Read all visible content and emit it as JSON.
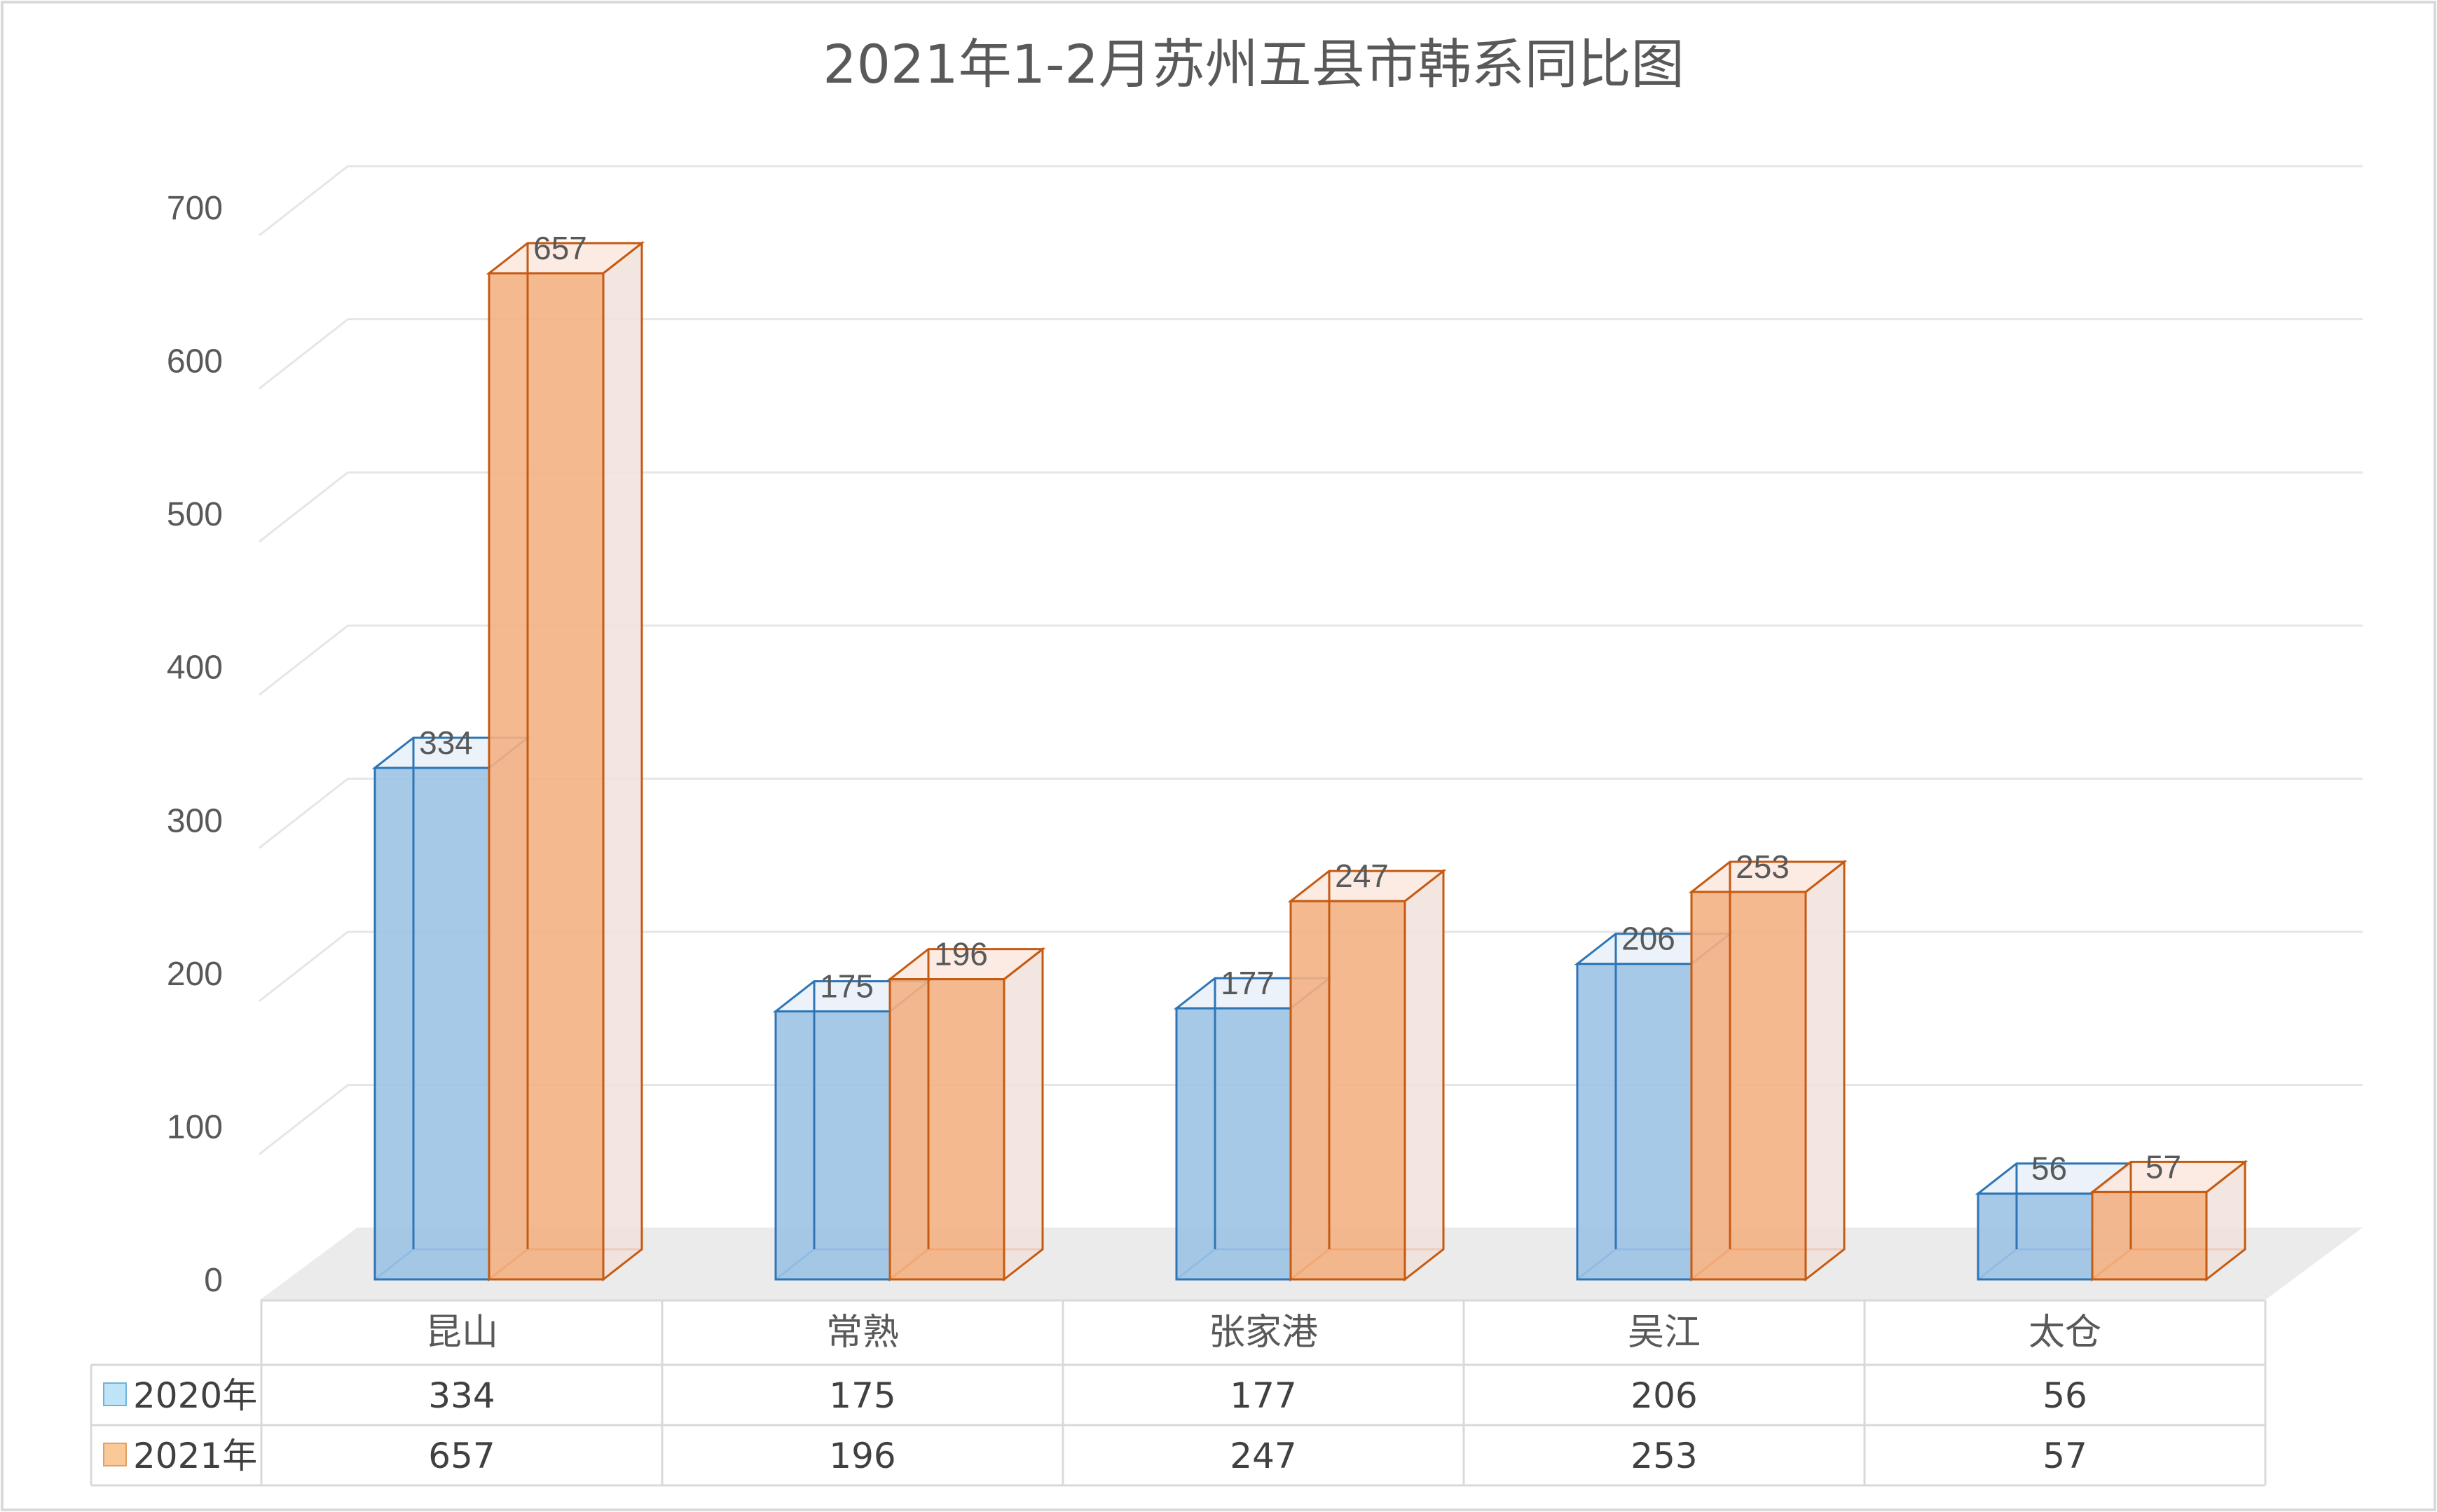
{
  "chart_data": {
    "type": "bar",
    "title": "2021年1-2月苏州五县市韩系同比图",
    "categories": [
      "昆山",
      "常熟",
      "张家港",
      "吴江",
      "太仓"
    ],
    "series": [
      {
        "name": "2020年",
        "values": [
          334,
          175,
          177,
          206,
          56
        ],
        "color": "#9DC3E6",
        "edge": "#2E75B6"
      },
      {
        "name": "2021年",
        "values": [
          657,
          196,
          247,
          253,
          57
        ],
        "color": "#F8CBAD",
        "edge": "#C55A11"
      }
    ],
    "ylim": [
      0,
      700
    ],
    "yticks": [
      0,
      100,
      200,
      300,
      400,
      500,
      600,
      700
    ],
    "grid": true,
    "legend": "data-table",
    "data_labels": true
  }
}
